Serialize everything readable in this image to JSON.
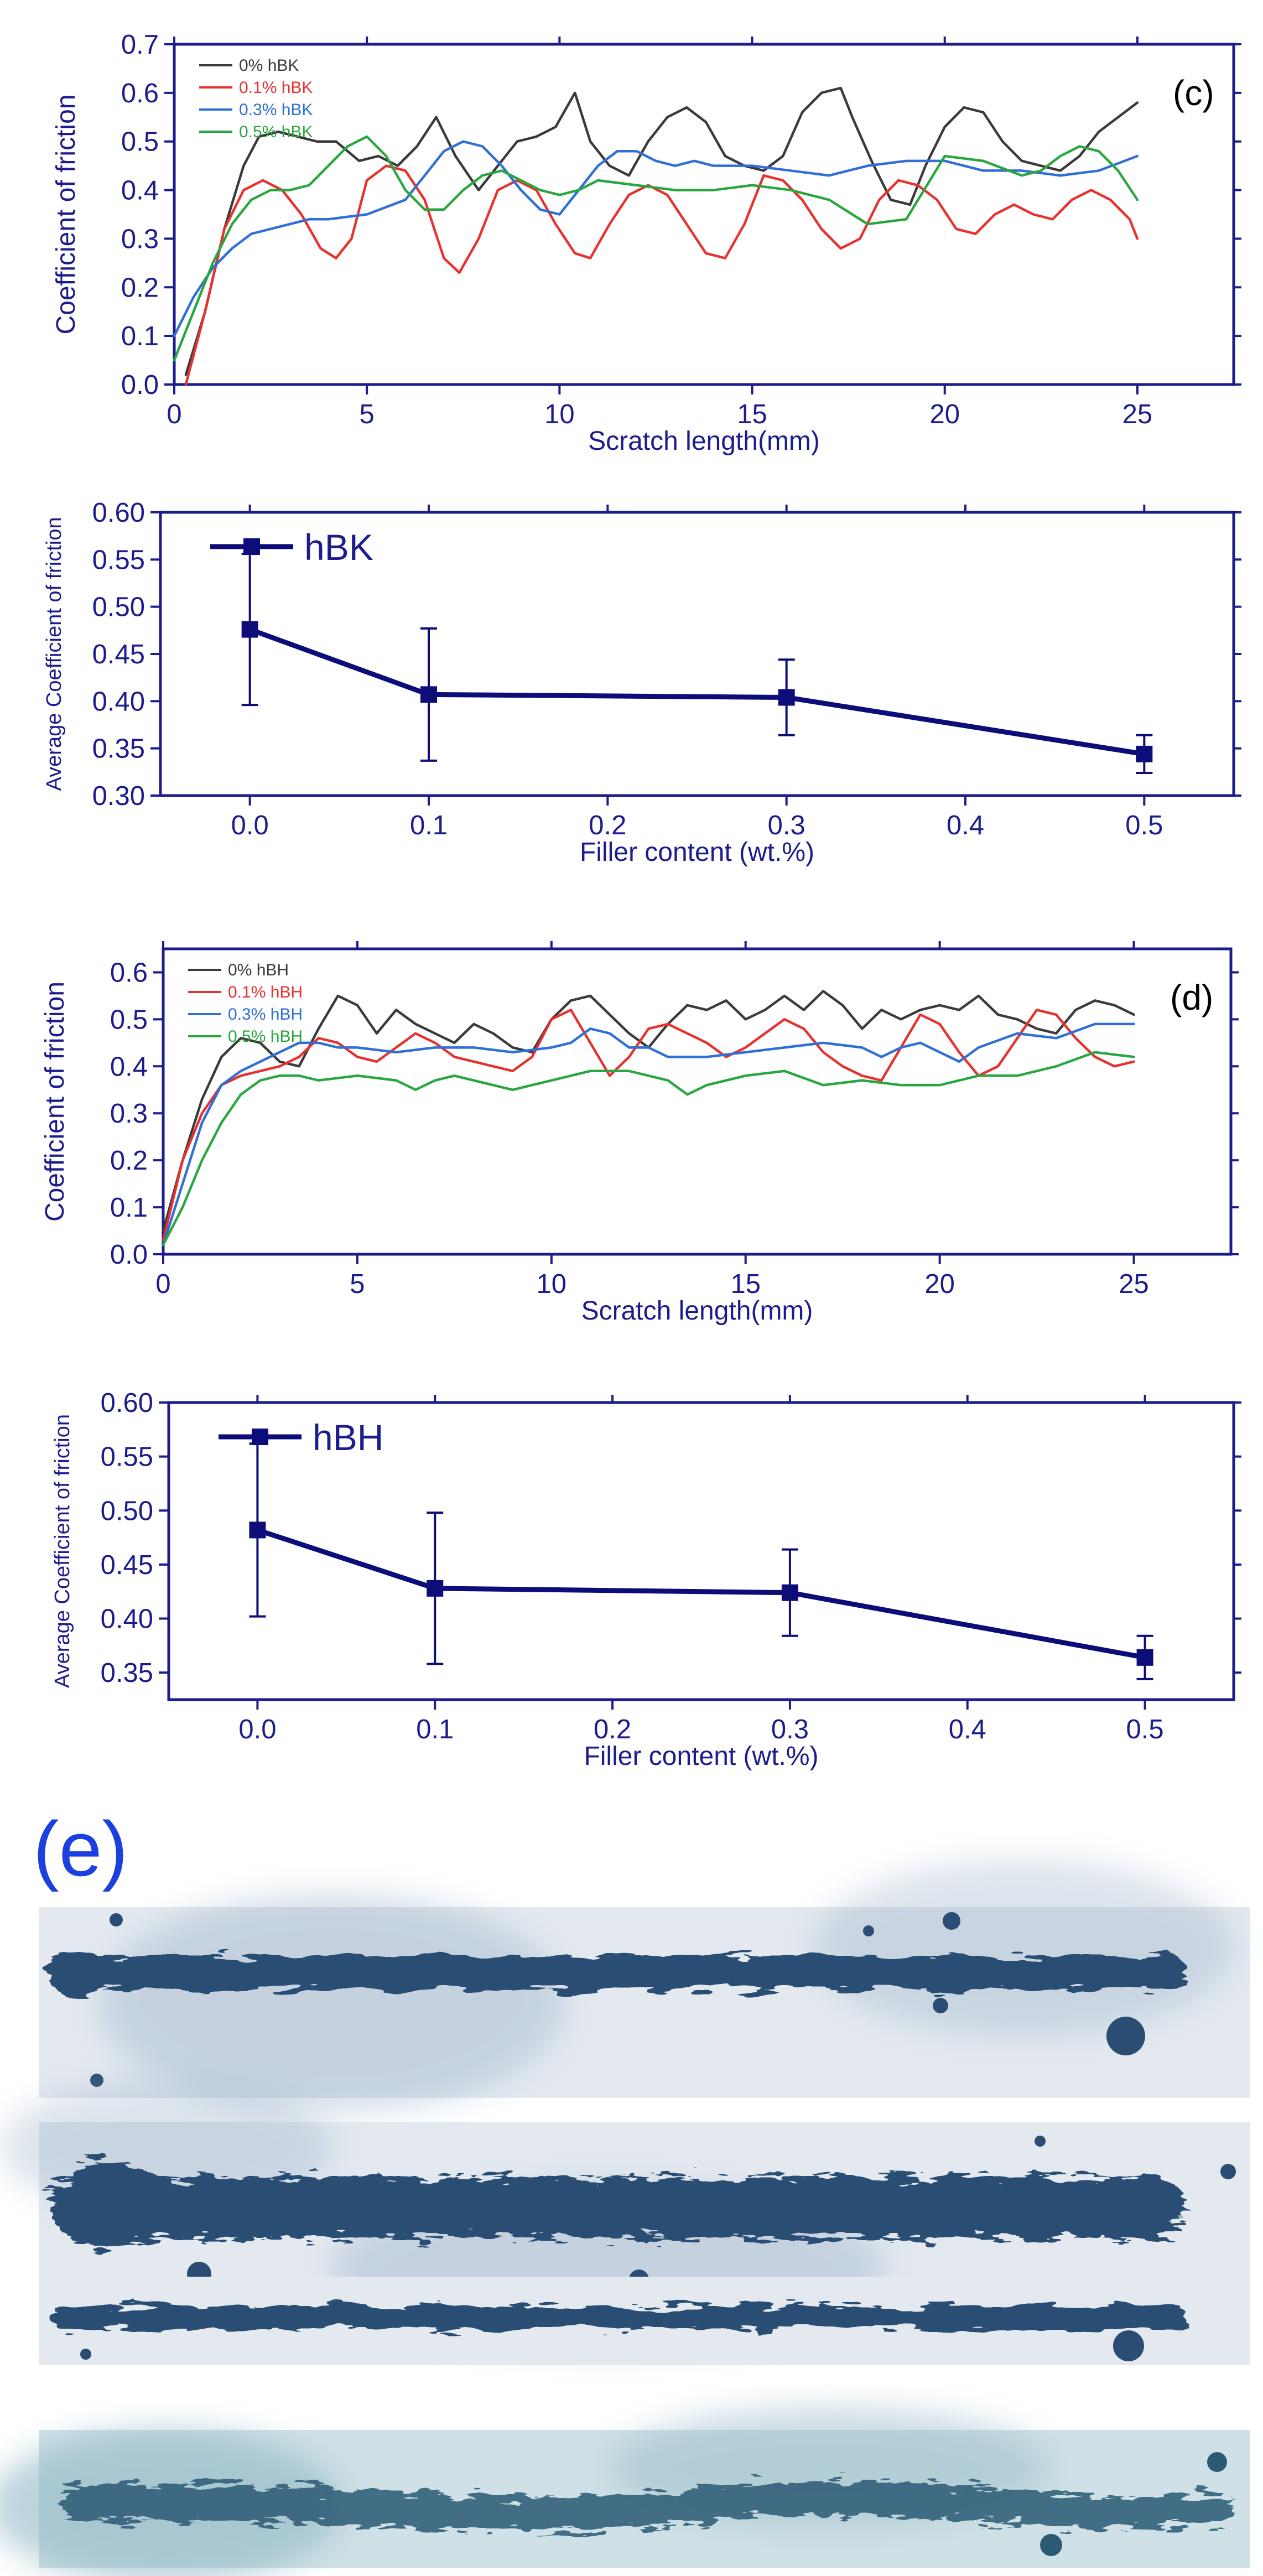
{
  "figure_label_e": "(e)",
  "colors": {
    "axis": "#1c1c8c",
    "s0": "#3a3a3a",
    "s1": "#e8312e",
    "s2": "#2f6fd6",
    "s3": "#2aa640",
    "avg": "#0d0d7a",
    "scratch_bg": "#e7edf2",
    "scratch_ink": "#24486e",
    "label_e": "#1c3fe0"
  },
  "chart_data": [
    {
      "type": "line",
      "panel_label": "(c)",
      "title": "",
      "xlabel": "Scratch length(mm)",
      "ylabel": "Coefficient of friction",
      "xlim": [
        0,
        27.5
      ],
      "ylim": [
        0,
        0.7
      ],
      "xticks": [
        0,
        5,
        10,
        15,
        20,
        25
      ],
      "yticks": [
        0.0,
        0.1,
        0.2,
        0.3,
        0.4,
        0.5,
        0.6,
        0.7
      ],
      "xtick_labels": [
        "0",
        "5",
        "10",
        "15",
        "20",
        "25"
      ],
      "ytick_labels": [
        "0.0",
        "0.1",
        "0.2",
        "0.3",
        "0.4",
        "0.5",
        "0.6",
        "0.7"
      ],
      "legend_position": "top-left",
      "series": [
        {
          "name": "0% hBK",
          "color": "#3a3a3a",
          "x": [
            0.3,
            0.8,
            1.3,
            1.8,
            2.2,
            2.7,
            3.2,
            3.7,
            4.2,
            4.8,
            5.3,
            5.8,
            6.3,
            6.8,
            7.3,
            7.9,
            8.4,
            8.9,
            9.4,
            9.9,
            10.4,
            10.8,
            11.3,
            11.8,
            12.3,
            12.8,
            13.3,
            13.8,
            14.3,
            14.8,
            15.3,
            15.8,
            16.3,
            16.8,
            17.3,
            17.6,
            18.1,
            18.6,
            19.1,
            19.5,
            20.0,
            20.5,
            21.0,
            21.5,
            22.0,
            22.5,
            23.0,
            23.5,
            24.0,
            24.5,
            25.0
          ],
          "y": [
            0.02,
            0.15,
            0.32,
            0.45,
            0.51,
            0.52,
            0.51,
            0.5,
            0.5,
            0.46,
            0.47,
            0.45,
            0.49,
            0.55,
            0.47,
            0.4,
            0.45,
            0.5,
            0.51,
            0.53,
            0.6,
            0.5,
            0.45,
            0.43,
            0.5,
            0.55,
            0.57,
            0.54,
            0.47,
            0.45,
            0.44,
            0.47,
            0.56,
            0.6,
            0.61,
            0.55,
            0.46,
            0.38,
            0.37,
            0.45,
            0.53,
            0.57,
            0.56,
            0.5,
            0.46,
            0.45,
            0.44,
            0.47,
            0.52,
            0.55,
            0.58
          ]
        },
        {
          "name": "0.1% hBK",
          "color": "#e8312e",
          "x": [
            0.3,
            0.8,
            1.3,
            1.8,
            2.3,
            2.8,
            3.3,
            3.8,
            4.2,
            4.6,
            5.0,
            5.5,
            6.0,
            6.5,
            7.0,
            7.4,
            7.9,
            8.4,
            8.9,
            9.4,
            9.9,
            10.4,
            10.8,
            11.3,
            11.8,
            12.3,
            12.8,
            13.3,
            13.8,
            14.3,
            14.8,
            15.3,
            15.8,
            16.3,
            16.8,
            17.3,
            17.8,
            18.3,
            18.8,
            19.3,
            19.8,
            20.3,
            20.8,
            21.3,
            21.8,
            22.3,
            22.8,
            23.3,
            23.8,
            24.3,
            24.8,
            25.0
          ],
          "y": [
            0.0,
            0.15,
            0.32,
            0.4,
            0.42,
            0.4,
            0.35,
            0.28,
            0.26,
            0.3,
            0.42,
            0.45,
            0.44,
            0.38,
            0.26,
            0.23,
            0.3,
            0.4,
            0.42,
            0.4,
            0.33,
            0.27,
            0.26,
            0.33,
            0.39,
            0.41,
            0.39,
            0.33,
            0.27,
            0.26,
            0.33,
            0.43,
            0.42,
            0.38,
            0.32,
            0.28,
            0.3,
            0.38,
            0.42,
            0.41,
            0.38,
            0.32,
            0.31,
            0.35,
            0.37,
            0.35,
            0.34,
            0.38,
            0.4,
            0.38,
            0.34,
            0.3
          ]
        },
        {
          "name": "0.3% hBK",
          "color": "#2f6fd6",
          "x": [
            0.0,
            0.5,
            1.0,
            1.5,
            2.0,
            2.5,
            3.0,
            3.5,
            4.0,
            5.0,
            6.0,
            6.5,
            7.0,
            7.5,
            8.0,
            8.5,
            9.0,
            9.5,
            10.0,
            10.5,
            11.0,
            11.5,
            12.0,
            12.5,
            13.0,
            13.5,
            14.0,
            15.0,
            16.0,
            17.0,
            18.0,
            19.0,
            20.0,
            21.0,
            22.0,
            23.0,
            24.0,
            25.0
          ],
          "y": [
            0.1,
            0.18,
            0.24,
            0.28,
            0.31,
            0.32,
            0.33,
            0.34,
            0.34,
            0.35,
            0.38,
            0.43,
            0.48,
            0.5,
            0.49,
            0.45,
            0.4,
            0.36,
            0.35,
            0.4,
            0.45,
            0.48,
            0.48,
            0.46,
            0.45,
            0.46,
            0.45,
            0.45,
            0.44,
            0.43,
            0.45,
            0.46,
            0.46,
            0.44,
            0.44,
            0.43,
            0.44,
            0.47
          ]
        },
        {
          "name": "0.5% hBK",
          "color": "#2aa640",
          "x": [
            0.0,
            0.5,
            1.0,
            1.5,
            2.0,
            2.5,
            3.0,
            3.5,
            4.0,
            4.5,
            5.0,
            5.5,
            6.0,
            6.5,
            7.0,
            7.5,
            8.0,
            8.5,
            9.0,
            9.5,
            10.0,
            10.5,
            11.0,
            12.0,
            13.0,
            14.0,
            15.0,
            16.0,
            17.0,
            18.0,
            19.0,
            20.0,
            21.0,
            22.0,
            22.5,
            23.0,
            23.5,
            24.0,
            24.5,
            25.0
          ],
          "y": [
            0.05,
            0.15,
            0.25,
            0.33,
            0.38,
            0.4,
            0.4,
            0.41,
            0.45,
            0.49,
            0.51,
            0.47,
            0.4,
            0.36,
            0.36,
            0.4,
            0.43,
            0.44,
            0.42,
            0.4,
            0.39,
            0.4,
            0.42,
            0.41,
            0.4,
            0.4,
            0.41,
            0.4,
            0.38,
            0.33,
            0.34,
            0.47,
            0.46,
            0.43,
            0.44,
            0.47,
            0.49,
            0.48,
            0.44,
            0.38
          ]
        }
      ]
    },
    {
      "type": "line",
      "title": "",
      "xlabel": "Filler content (wt.%)",
      "ylabel": "Average Coefficient of friction",
      "xlim": [
        -0.05,
        0.55
      ],
      "ylim": [
        0.3,
        0.6
      ],
      "xticks": [
        0.0,
        0.1,
        0.2,
        0.3,
        0.4,
        0.5
      ],
      "yticks": [
        0.3,
        0.35,
        0.4,
        0.45,
        0.5,
        0.55,
        0.6
      ],
      "xtick_labels": [
        "0.0",
        "0.1",
        "0.2",
        "0.3",
        "0.4",
        "0.5"
      ],
      "ytick_labels": [
        "0.30",
        "0.35",
        "0.40",
        "0.45",
        "0.50",
        "0.55",
        "0.60"
      ],
      "legend_position": "top-left",
      "series": [
        {
          "name": "hBK",
          "color": "#0d0d7a",
          "x": [
            0.0,
            0.1,
            0.3,
            0.5
          ],
          "y": [
            0.476,
            0.407,
            0.404,
            0.344
          ],
          "err": [
            0.08,
            0.07,
            0.04,
            0.02
          ]
        }
      ]
    },
    {
      "type": "line",
      "panel_label": "(d)",
      "title": "",
      "xlabel": "Scratch length(mm)",
      "ylabel": "Coefficient of friction",
      "xlim": [
        0,
        27.5
      ],
      "ylim": [
        0,
        0.65
      ],
      "xticks": [
        0,
        5,
        10,
        15,
        20,
        25
      ],
      "yticks": [
        0.0,
        0.1,
        0.2,
        0.3,
        0.4,
        0.5,
        0.6
      ],
      "xtick_labels": [
        "0",
        "5",
        "10",
        "15",
        "20",
        "25"
      ],
      "ytick_labels": [
        "0.0",
        "0.1",
        "0.2",
        "0.3",
        "0.4",
        "0.5",
        "0.6"
      ],
      "legend_position": "top-left",
      "series": [
        {
          "name": "0% hBH",
          "color": "#3a3a3a",
          "x": [
            0.0,
            0.5,
            1.0,
            1.5,
            2.0,
            2.5,
            3.0,
            3.5,
            4.0,
            4.5,
            5.0,
            5.5,
            6.0,
            6.5,
            7.0,
            7.5,
            8.0,
            8.5,
            9.0,
            9.5,
            10.0,
            10.5,
            11.0,
            11.5,
            12.0,
            12.5,
            13.0,
            13.5,
            14.0,
            14.5,
            15.0,
            15.5,
            16.0,
            16.5,
            17.0,
            17.5,
            18.0,
            18.5,
            19.0,
            19.5,
            20.0,
            20.5,
            21.0,
            21.5,
            22.0,
            22.5,
            23.0,
            23.5,
            24.0,
            24.5,
            25.0
          ],
          "y": [
            0.05,
            0.2,
            0.33,
            0.42,
            0.46,
            0.45,
            0.41,
            0.4,
            0.48,
            0.55,
            0.53,
            0.47,
            0.52,
            0.49,
            0.47,
            0.45,
            0.49,
            0.47,
            0.44,
            0.43,
            0.5,
            0.54,
            0.55,
            0.51,
            0.47,
            0.44,
            0.49,
            0.53,
            0.52,
            0.54,
            0.5,
            0.52,
            0.55,
            0.52,
            0.56,
            0.53,
            0.48,
            0.52,
            0.5,
            0.52,
            0.53,
            0.52,
            0.55,
            0.51,
            0.5,
            0.48,
            0.47,
            0.52,
            0.54,
            0.53,
            0.51
          ]
        },
        {
          "name": "0.1% hBH",
          "color": "#e8312e",
          "x": [
            0.0,
            0.5,
            1.0,
            1.5,
            2.0,
            2.5,
            3.0,
            3.5,
            4.0,
            4.5,
            5.0,
            5.5,
            6.0,
            6.5,
            7.0,
            7.5,
            8.0,
            8.5,
            9.0,
            9.5,
            10.0,
            10.5,
            11.0,
            11.5,
            12.0,
            12.5,
            13.0,
            13.5,
            14.0,
            14.5,
            15.0,
            15.5,
            16.0,
            16.5,
            17.0,
            17.5,
            18.0,
            18.5,
            19.0,
            19.5,
            20.0,
            20.5,
            21.0,
            21.5,
            22.0,
            22.5,
            23.0,
            23.5,
            24.0,
            24.5,
            25.0
          ],
          "y": [
            0.03,
            0.2,
            0.3,
            0.36,
            0.38,
            0.39,
            0.4,
            0.42,
            0.46,
            0.45,
            0.42,
            0.41,
            0.44,
            0.47,
            0.45,
            0.42,
            0.41,
            0.4,
            0.39,
            0.42,
            0.5,
            0.52,
            0.45,
            0.38,
            0.42,
            0.48,
            0.49,
            0.47,
            0.45,
            0.42,
            0.44,
            0.47,
            0.5,
            0.48,
            0.43,
            0.4,
            0.38,
            0.37,
            0.44,
            0.51,
            0.49,
            0.43,
            0.38,
            0.4,
            0.46,
            0.52,
            0.51,
            0.46,
            0.42,
            0.4,
            0.41
          ]
        },
        {
          "name": "0.3% hBH",
          "color": "#2f6fd6",
          "x": [
            0.0,
            0.5,
            1.0,
            1.5,
            2.0,
            2.5,
            3.0,
            3.5,
            4.0,
            4.5,
            5.0,
            6.0,
            7.0,
            8.0,
            9.0,
            10.0,
            10.5,
            11.0,
            11.5,
            12.0,
            12.5,
            13.0,
            14.0,
            15.0,
            16.0,
            17.0,
            18.0,
            18.5,
            19.0,
            19.5,
            20.0,
            20.5,
            21.0,
            22.0,
            23.0,
            24.0,
            25.0
          ],
          "y": [
            0.02,
            0.15,
            0.28,
            0.36,
            0.39,
            0.41,
            0.43,
            0.45,
            0.45,
            0.44,
            0.44,
            0.43,
            0.44,
            0.44,
            0.43,
            0.44,
            0.45,
            0.48,
            0.47,
            0.44,
            0.44,
            0.42,
            0.42,
            0.43,
            0.44,
            0.45,
            0.44,
            0.42,
            0.44,
            0.45,
            0.43,
            0.41,
            0.44,
            0.47,
            0.46,
            0.49,
            0.49
          ]
        },
        {
          "name": "0.5% hBH",
          "color": "#2aa640",
          "x": [
            0.0,
            0.5,
            1.0,
            1.5,
            2.0,
            2.5,
            3.0,
            3.5,
            4.0,
            5.0,
            6.0,
            6.5,
            7.0,
            7.5,
            8.0,
            9.0,
            10.0,
            11.0,
            12.0,
            13.0,
            13.5,
            14.0,
            15.0,
            16.0,
            17.0,
            18.0,
            19.0,
            20.0,
            21.0,
            22.0,
            23.0,
            24.0,
            25.0
          ],
          "y": [
            0.02,
            0.1,
            0.2,
            0.28,
            0.34,
            0.37,
            0.38,
            0.38,
            0.37,
            0.38,
            0.37,
            0.35,
            0.37,
            0.38,
            0.37,
            0.35,
            0.37,
            0.39,
            0.39,
            0.37,
            0.34,
            0.36,
            0.38,
            0.39,
            0.36,
            0.37,
            0.36,
            0.36,
            0.38,
            0.38,
            0.4,
            0.43,
            0.42
          ]
        }
      ]
    },
    {
      "type": "line",
      "title": "",
      "xlabel": "Filler content (wt.%)",
      "ylabel": "Average Coefficient of friction",
      "xlim": [
        -0.05,
        0.55
      ],
      "ylim": [
        0.325,
        0.6
      ],
      "xticks": [
        0.0,
        0.1,
        0.2,
        0.3,
        0.4,
        0.5
      ],
      "yticks": [
        0.35,
        0.4,
        0.45,
        0.5,
        0.55,
        0.6
      ],
      "xtick_labels": [
        "0.0",
        "0.1",
        "0.2",
        "0.3",
        "0.4",
        "0.5"
      ],
      "ytick_labels": [
        "0.35",
        "0.40",
        "0.45",
        "0.50",
        "0.55",
        "0.60"
      ],
      "legend_position": "top-left",
      "series": [
        {
          "name": "hBH",
          "color": "#0d0d7a",
          "x": [
            0.0,
            0.1,
            0.3,
            0.5
          ],
          "y": [
            0.482,
            0.428,
            0.424,
            0.364
          ],
          "err": [
            0.08,
            0.07,
            0.04,
            0.02
          ]
        }
      ]
    }
  ]
}
